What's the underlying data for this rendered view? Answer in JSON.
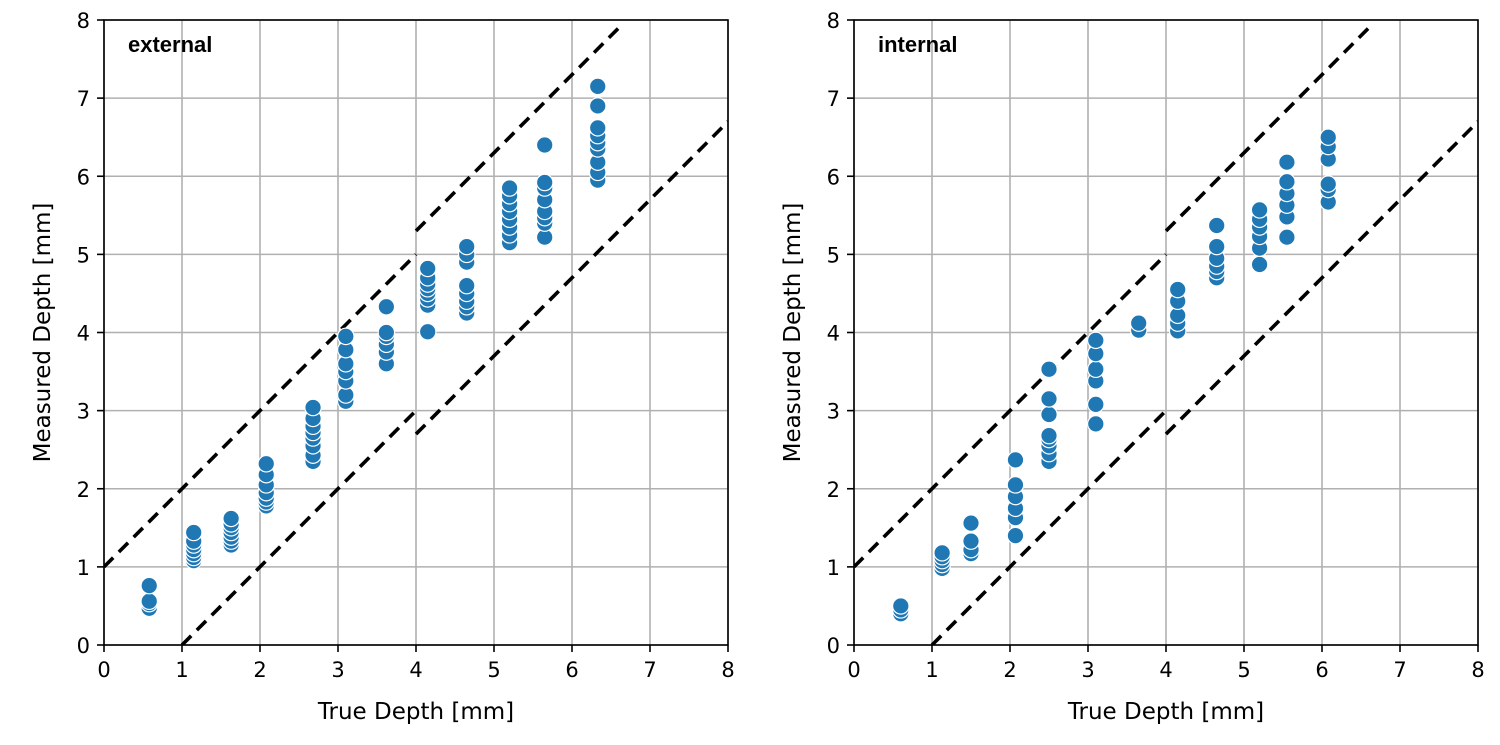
{
  "chart_data": [
    {
      "type": "scatter",
      "title": "external",
      "xlabel": "True Depth [mm]",
      "ylabel": "Measured Depth [mm]",
      "xlim": [
        0,
        8
      ],
      "ylim": [
        0,
        8
      ],
      "xticks": [
        0,
        1,
        2,
        3,
        4,
        5,
        6,
        7,
        8
      ],
      "yticks": [
        0,
        1,
        2,
        3,
        4,
        5,
        6,
        7,
        8
      ],
      "grid": true,
      "marker_color": "#1f77b4",
      "tolerance_lines": [
        {
          "x": [
            0,
            4
          ],
          "y": [
            1,
            5
          ]
        },
        {
          "x": [
            4,
            6.6
          ],
          "y": [
            5.3,
            7.9
          ]
        },
        {
          "x": [
            1,
            4
          ],
          "y": [
            0,
            3
          ]
        },
        {
          "x": [
            4,
            8
          ],
          "y": [
            2.7,
            6.7
          ]
        }
      ],
      "points": [
        {
          "x": 0.58,
          "y": [
            0.47,
            0.53,
            0.56,
            0.76
          ]
        },
        {
          "x": 1.15,
          "y": [
            1.08,
            1.12,
            1.17,
            1.22,
            1.28,
            1.33,
            1.44
          ]
        },
        {
          "x": 1.63,
          "y": [
            1.28,
            1.33,
            1.38,
            1.44,
            1.5,
            1.55,
            1.62
          ]
        },
        {
          "x": 2.08,
          "y": [
            1.78,
            1.83,
            1.88,
            1.95,
            2.05,
            2.18,
            2.32
          ]
        },
        {
          "x": 2.68,
          "y": [
            2.35,
            2.43,
            2.55,
            2.65,
            2.72,
            2.8,
            2.9,
            3.04
          ]
        },
        {
          "x": 3.1,
          "y": [
            3.12,
            3.2,
            3.38,
            3.5,
            3.6,
            3.78,
            3.95
          ]
        },
        {
          "x": 3.62,
          "y": [
            3.6,
            3.75,
            3.85,
            3.95,
            4.0,
            4.33
          ]
        },
        {
          "x": 4.15,
          "y": [
            4.01,
            4.35,
            4.43,
            4.5,
            4.56,
            4.62,
            4.7,
            4.82
          ]
        },
        {
          "x": 4.65,
          "y": [
            4.25,
            4.33,
            4.4,
            4.5,
            4.6,
            4.9,
            5.0,
            5.1
          ]
        },
        {
          "x": 5.2,
          "y": [
            5.15,
            5.25,
            5.35,
            5.45,
            5.55,
            5.65,
            5.75,
            5.85
          ]
        },
        {
          "x": 5.65,
          "y": [
            5.22,
            5.4,
            5.47,
            5.55,
            5.7,
            5.85,
            5.92,
            6.4
          ]
        },
        {
          "x": 6.33,
          "y": [
            5.95,
            6.05,
            6.18,
            6.35,
            6.43,
            6.52,
            6.62,
            6.9,
            7.15
          ]
        }
      ]
    },
    {
      "type": "scatter",
      "title": "internal",
      "xlabel": "True Depth [mm]",
      "ylabel": "Measured Depth [mm]",
      "xlim": [
        0,
        8
      ],
      "ylim": [
        0,
        8
      ],
      "xticks": [
        0,
        1,
        2,
        3,
        4,
        5,
        6,
        7,
        8
      ],
      "yticks": [
        0,
        1,
        2,
        3,
        4,
        5,
        6,
        7,
        8
      ],
      "grid": true,
      "marker_color": "#1f77b4",
      "tolerance_lines": [
        {
          "x": [
            0,
            4
          ],
          "y": [
            1,
            5
          ]
        },
        {
          "x": [
            4,
            6.6
          ],
          "y": [
            5.3,
            7.9
          ]
        },
        {
          "x": [
            1,
            4
          ],
          "y": [
            0,
            3
          ]
        },
        {
          "x": [
            4,
            8
          ],
          "y": [
            2.7,
            6.7
          ]
        }
      ],
      "points": [
        {
          "x": 0.6,
          "y": [
            0.4,
            0.45,
            0.5
          ]
        },
        {
          "x": 1.13,
          "y": [
            0.98,
            1.03,
            1.08,
            1.13,
            1.18
          ]
        },
        {
          "x": 1.5,
          "y": [
            1.17,
            1.22,
            1.33,
            1.56
          ]
        },
        {
          "x": 2.07,
          "y": [
            1.4,
            1.63,
            1.75,
            1.9,
            2.05,
            2.37
          ]
        },
        {
          "x": 2.5,
          "y": [
            2.35,
            2.45,
            2.55,
            2.63,
            2.68,
            2.95,
            3.15,
            3.53
          ]
        },
        {
          "x": 3.1,
          "y": [
            2.83,
            3.08,
            3.38,
            3.53,
            3.73,
            3.9
          ]
        },
        {
          "x": 3.65,
          "y": [
            4.03,
            4.12
          ]
        },
        {
          "x": 4.15,
          "y": [
            4.02,
            4.12,
            4.22,
            4.4,
            4.55
          ]
        },
        {
          "x": 4.65,
          "y": [
            4.7,
            4.78,
            4.85,
            4.95,
            5.1,
            5.37
          ]
        },
        {
          "x": 5.2,
          "y": [
            4.87,
            5.08,
            5.23,
            5.35,
            5.45,
            5.57
          ]
        },
        {
          "x": 5.55,
          "y": [
            5.22,
            5.48,
            5.63,
            5.78,
            5.93,
            6.18
          ]
        },
        {
          "x": 6.08,
          "y": [
            5.67,
            5.83,
            5.9,
            6.22,
            6.38,
            6.5
          ]
        }
      ]
    }
  ]
}
